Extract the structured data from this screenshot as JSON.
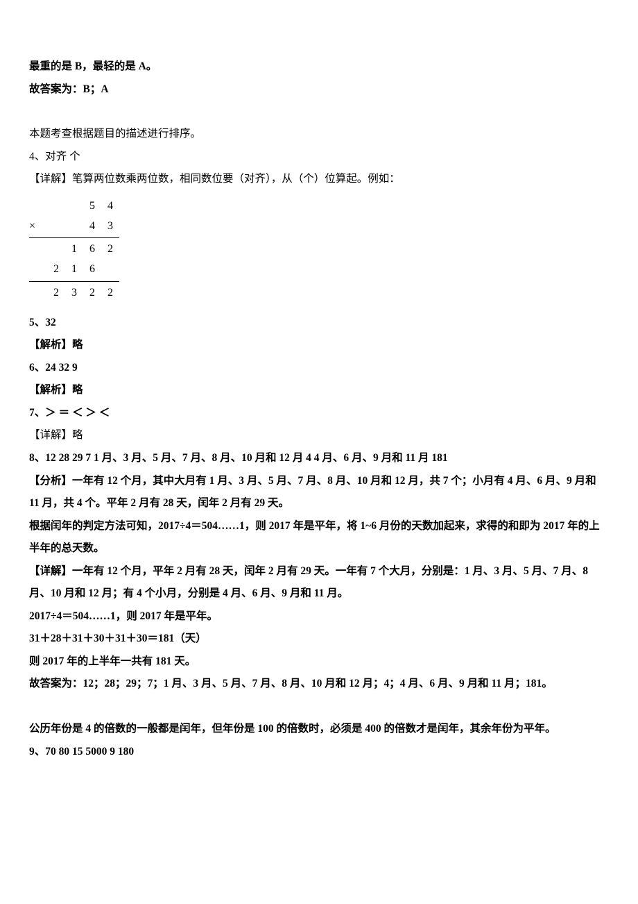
{
  "lines": {
    "l1": "最重的是 B，最轻的是 A。",
    "l2": "故答案为：B；A",
    "l3": "本题考查根据题目的描述进行排序。",
    "l4": "4、对齐     个",
    "l5": "【详解】笔算两位数乘两位数，相同数位要（对齐），从（个）位算起。例如：",
    "l6": "5、32",
    "l7": "【解析】略",
    "l8": "6、24     32     9",
    "l9": "【解析】略",
    "l10": "7、＞     ＝     ＜     ＞     ＜",
    "l11": "【详解】略",
    "l12": "8、12     28     29     7     1 月、3 月、5 月、7 月、8 月、10 月和 12 月     4     4 月、6 月、9 月和 11 月     181",
    "l13": "【分析】一年有 12 个月，其中大月有 1 月、3 月、5 月、7 月、8 月、10 月和 12 月，共 7 个；小月有 4 月、6 月、9 月和 11 月，共 4 个。平年 2 月有 28 天，闰年 2 月有 29 天。",
    "l14": "根据闰年的判定方法可知，2017÷4＝504……1，则 2017 年是平年，将 1~6 月份的天数加起来，求得的和即为 2017 年的上半年的总天数。",
    "l15": "【详解】一年有 12 个月，平年 2 月有 28 天，闰年 2 月有 29 天。一年有 7 个大月，分别是：1 月、3 月、5 月、7 月、8 月、10 月和 12 月；有 4 个小月，分别是 4 月、6 月、9 月和 11 月。",
    "l16": "2017÷4＝504……1，则 2017 年是平年。",
    "l17": "31＋28＋31＋30＋31＋30＝181（天）",
    "l18": "则 2017 年的上半年一共有 181 天。",
    "l19": "故答案为：12；28；29；7；1 月、3 月、5 月、7 月、8 月、10 月和 12 月；4；4 月、6 月、9 月和 11 月；181。",
    "l20": "公历年份是 4 的倍数的一般都是闰年，但年份是 100 的倍数时，必须是 400 的倍数才是闰年，其余年份为平年。",
    "l21": "9、70     80     15     5000     9     180"
  },
  "mult": {
    "r1": [
      "",
      "",
      "",
      "5",
      "4"
    ],
    "r2": [
      "×",
      "",
      "",
      "4",
      "3"
    ],
    "r3": [
      "",
      "",
      "1",
      "6",
      "2"
    ],
    "r4": [
      "",
      "2",
      "1",
      "6",
      ""
    ],
    "r5": [
      "",
      "2",
      "3",
      "2",
      "2"
    ]
  }
}
